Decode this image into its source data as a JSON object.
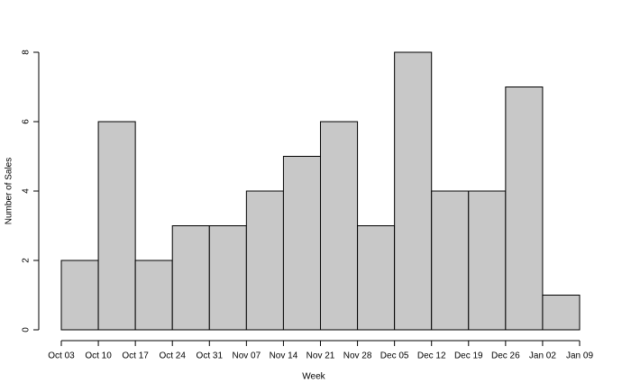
{
  "chart_data": {
    "type": "histogram",
    "xlabel": "Week",
    "ylabel": "Number of Sales",
    "bins": [
      "Oct 03",
      "Oct 10",
      "Oct 17",
      "Oct 24",
      "Oct 31",
      "Nov 07",
      "Nov 14",
      "Nov 21",
      "Nov 28",
      "Dec 05",
      "Dec 12",
      "Dec 19",
      "Dec 26",
      "Jan 02",
      "Jan 09"
    ],
    "values": [
      2,
      6,
      2,
      3,
      3,
      4,
      5,
      6,
      3,
      8,
      4,
      4,
      7,
      1
    ],
    "color": "#c8c8c8",
    "ylim": [
      0,
      8
    ],
    "yticks": [
      0,
      2,
      4,
      6,
      8
    ]
  }
}
